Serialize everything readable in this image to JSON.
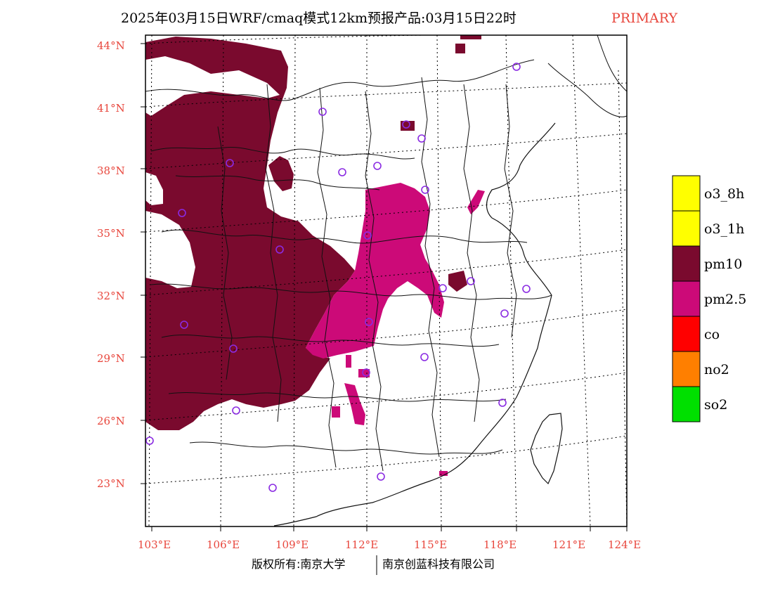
{
  "title": {
    "main": "2025年03月15日WRF/cmaq模式12km预报产品:03月15日22时",
    "tag": "PRIMARY"
  },
  "axes": {
    "lat_ticks": [
      "44°N",
      "41°N",
      "38°N",
      "35°N",
      "32°N",
      "29°N",
      "26°N",
      "23°N"
    ],
    "lon_ticks": [
      "103°E",
      "106°E",
      "109°E",
      "112°E",
      "115°E",
      "118°E",
      "121°E",
      "124°E"
    ]
  },
  "legend": {
    "items": [
      {
        "label": "o3_8h",
        "color": "#ffff00"
      },
      {
        "label": "o3_1h",
        "color": "#ffff00"
      },
      {
        "label": "pm10",
        "color": "#7a0a2e"
      },
      {
        "label": "pm2.5",
        "color": "#cc0a78"
      },
      {
        "label": "co",
        "color": "#ff0000"
      },
      {
        "label": "no2",
        "color": "#ff7f00"
      },
      {
        "label": "so2",
        "color": "#00e000"
      }
    ]
  },
  "colors": {
    "pm10": "#7a0a2e",
    "pm25": "#cc0a78",
    "station": "#8a2be2",
    "tick": "#e8463c"
  },
  "footer": {
    "left": "版权所有:南京大学",
    "right": "南京创蓝科技有限公司"
  }
}
